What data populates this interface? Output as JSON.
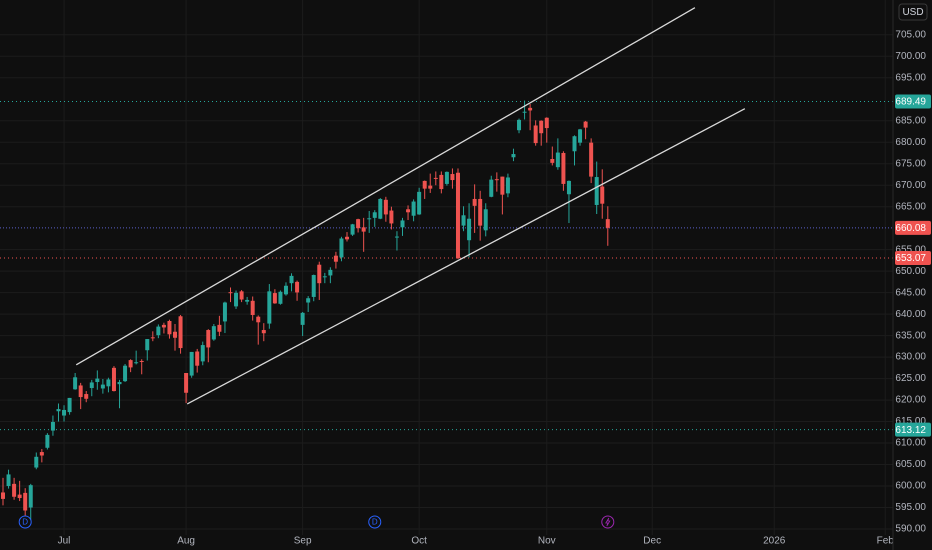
{
  "chart_data": {
    "type": "candlestick",
    "currency": "USD",
    "up_color": "#26a69a",
    "down_color": "#ef5350",
    "grid": true,
    "xlim": [
      -0.54,
      160.4
    ],
    "ylim": [
      588.6,
      713.1
    ],
    "xticks": [
      {
        "value": 11,
        "label": "Jul"
      },
      {
        "value": 33,
        "label": "Aug"
      },
      {
        "value": 54,
        "label": "Sep"
      },
      {
        "value": 75,
        "label": "Oct"
      },
      {
        "value": 98,
        "label": "Nov"
      },
      {
        "value": 117,
        "label": "Dec"
      },
      {
        "value": 139,
        "label": "2026"
      },
      {
        "value": 159,
        "label": "Feb"
      }
    ],
    "yticks": [
      {
        "value": 590,
        "label": "590.00"
      },
      {
        "value": 595,
        "label": "595.00"
      },
      {
        "value": 600,
        "label": "600.00"
      },
      {
        "value": 605,
        "label": "605.00"
      },
      {
        "value": 610,
        "label": "610.00"
      },
      {
        "value": 615,
        "label": "615.00"
      },
      {
        "value": 620,
        "label": "620.00"
      },
      {
        "value": 625,
        "label": "625.00"
      },
      {
        "value": 630,
        "label": "630.00"
      },
      {
        "value": 635,
        "label": "635.00"
      },
      {
        "value": 640,
        "label": "640.00"
      },
      {
        "value": 645,
        "label": "645.00"
      },
      {
        "value": 650,
        "label": "650.00"
      },
      {
        "value": 655,
        "label": "655.00"
      },
      {
        "value": 665,
        "label": "665.00"
      },
      {
        "value": 670,
        "label": "670.00"
      },
      {
        "value": 675,
        "label": "675.00"
      },
      {
        "value": 680,
        "label": "680.00"
      },
      {
        "value": 685,
        "label": "685.00"
      },
      {
        "value": 695,
        "label": "695.00"
      },
      {
        "value": 700,
        "label": "700.00"
      },
      {
        "value": 705,
        "label": "705.00"
      }
    ],
    "open": [
      598.5,
      600.0,
      600.5,
      598.0,
      598.4,
      595.0,
      604.3,
      607.9,
      608.9,
      612.9,
      617.4,
      616.4,
      617.2,
      622.5,
      623.4,
      621.4,
      622.8,
      624.2,
      622.7,
      623.2,
      627.5,
      623.7,
      624.4,
      629.3,
      628.8,
      629.1,
      631.6,
      634.6,
      635.1,
      637.5,
      638.4,
      635.9,
      639.5,
      626.3,
      625.7,
      631.3,
      629.0,
      636.3,
      634.1,
      637.5,
      638.3,
      645.1,
      641.8,
      645.3,
      642.9,
      643.1,
      639.4,
      636.3,
      637.8,
      644.9,
      642.4,
      644.6,
      647.2,
      647.5,
      637.5,
      642.7,
      644.0,
      651.5,
      648.6,
      649.0,
      653.6,
      653.2,
      658.0,
      658.5,
      662.1,
      660.2,
      662.2,
      662.4,
      662.2,
      666.6,
      664.1,
      657.9,
      660.2,
      664.4,
      662.9,
      663.2,
      671.0,
      669.9,
      671.7,
      672.4,
      670.3,
      672.6,
      672.9,
      660.6,
      657.2,
      666.8,
      666.8,
      659.5,
      667.3,
      671.4,
      672.0,
      668.1,
      676.5,
      682.8,
      687.0,
      688.0,
      683.9,
      685.0,
      685.7,
      676.1,
      674.2,
      677.5,
      667.9,
      677.9,
      679.9,
      684.8,
      679.9,
      665.4,
      669.7,
      662.1
    ],
    "high": [
      601.9,
      603.8,
      601.9,
      601.2,
      599.5,
      600.5,
      607.8,
      608.6,
      612.3,
      616.4,
      619.2,
      618.8,
      620.5,
      626.3,
      624.0,
      622.1,
      624.7,
      626.9,
      624.9,
      625.2,
      627.9,
      624.7,
      628.4,
      629.5,
      631.5,
      629.5,
      634.2,
      636.0,
      637.6,
      638.0,
      638.7,
      637.7,
      639.8,
      626.3,
      631.2,
      631.9,
      633.6,
      636.5,
      637.7,
      639.6,
      642.9,
      646.2,
      645.5,
      645.6,
      644.0,
      644.1,
      639.7,
      637.9,
      647.0,
      645.8,
      645.5,
      647.4,
      649.5,
      647.8,
      640.5,
      644.2,
      649.2,
      652.2,
      649.6,
      650.9,
      654.5,
      658.0,
      659.1,
      661.0,
      662.2,
      662.4,
      664.0,
      664.2,
      667.0,
      667.3,
      665.0,
      659.3,
      662.4,
      665.3,
      666.7,
      669.4,
      671.1,
      672.7,
      673.2,
      673.2,
      673.2,
      673.9,
      673.9,
      665.1,
      665.8,
      670.2,
      668.7,
      665.8,
      672.2,
      672.99,
      672.0,
      672.7,
      678.5,
      685.5,
      689.7,
      688.9,
      685.1,
      685.1,
      685.8,
      679.0,
      680.9,
      677.9,
      671.1,
      681.6,
      683.1,
      684.96,
      680.9,
      675.5,
      673.7,
      665.1
    ],
    "low": [
      595.5,
      599.4,
      596.8,
      596.5,
      592.9,
      591.9,
      603.9,
      605.5,
      608.5,
      611.7,
      615.0,
      615.0,
      616.6,
      622.4,
      617.9,
      619.5,
      620.9,
      622.4,
      621.5,
      621.8,
      622.0,
      618.1,
      624.2,
      626.5,
      628.3,
      626.0,
      629.2,
      633.7,
      634.4,
      635.5,
      634.3,
      631.5,
      630.8,
      619.3,
      625.2,
      626.4,
      628.1,
      628.8,
      633.8,
      634.9,
      635.6,
      642.8,
      641.2,
      642.8,
      642.2,
      638.5,
      632.9,
      633.7,
      636.6,
      642.4,
      642.2,
      644.3,
      645.3,
      643.1,
      634.9,
      640.5,
      643.0,
      643.3,
      647.2,
      647.2,
      650.6,
      652.3,
      656.9,
      658.2,
      659.0,
      654.5,
      658.9,
      660.3,
      662.1,
      661.5,
      659.7,
      654.8,
      658.2,
      661.9,
      661.6,
      663.1,
      666.8,
      668.2,
      670.0,
      668.1,
      669.9,
      669.2,
      652.8,
      659.3,
      653.2,
      658.9,
      657.1,
      658.1,
      667.2,
      668.5,
      663.2,
      667.2,
      675.6,
      682.1,
      685.3,
      682.8,
      679.2,
      679.2,
      679.9,
      674.6,
      673.6,
      668.7,
      661.2,
      674.6,
      679.2,
      680.7,
      670.5,
      663.3,
      662.2,
      655.9
    ],
    "close": [
      597.0,
      602.7,
      597.5,
      597.2,
      594.3,
      600.2,
      606.8,
      607.1,
      611.9,
      614.9,
      617.9,
      617.7,
      620.5,
      625.3,
      620.7,
      620.3,
      624.1,
      625.0,
      623.6,
      624.8,
      622.1,
      624.2,
      628.0,
      627.6,
      628.8,
      628.9,
      634.2,
      634.4,
      637.1,
      636.9,
      635.3,
      634.5,
      632.1,
      621.7,
      631.2,
      628.0,
      632.8,
      632.25,
      637.2,
      635.9,
      642.7,
      644.9,
      644.95,
      643.4,
      643.3,
      639.8,
      638.1,
      635.55,
      645.3,
      642.5,
      645.2,
      646.6,
      648.9,
      645.05,
      640.3,
      643.7,
      649.1,
      647.2,
      648.8,
      650.3,
      652.2,
      657.6,
      657.4,
      660.9,
      660.0,
      659.2,
      662.3,
      663.7,
      666.8,
      663.2,
      661.1,
      658.05,
      661.8,
      663.7,
      666.2,
      668.45,
      669.2,
      669.2,
      671.6,
      669.1,
      673.1,
      671.2,
      653.0,
      663.0,
      662.2,
      665.2,
      660.6,
      664.4,
      671.3,
      671.3,
      667.8,
      671.8,
      677.25,
      685.2,
      687.1,
      687.4,
      679.8,
      682.1,
      683.3,
      675.2,
      677.6,
      670.3,
      671.0,
      681.4,
      683.0,
      683.4,
      672.0,
      671.9,
      665.7,
      660.08
    ],
    "hlines": [
      {
        "value": 689.49,
        "color": "#26a69a"
      },
      {
        "value": 653.07,
        "color": "#ef5350"
      },
      {
        "value": 613.12,
        "color": "#26a69a"
      }
    ],
    "last_price": 660.08,
    "last_price_color": "#ef5350",
    "last_line_color": "#5b5fc7",
    "trendlines": [
      {
        "color": "#d9d9d9",
        "x": [
          13.2,
          124.7
        ],
        "y": [
          628.2,
          711.3
        ]
      },
      {
        "color": "#d9d9d9",
        "x": [
          33.2,
          133.7
        ],
        "y": [
          619.1,
          687.8
        ]
      }
    ],
    "markers": [
      {
        "x": 4,
        "label": "D",
        "color": "#2962ff"
      },
      {
        "x": 67,
        "label": "D",
        "color": "#2962ff"
      },
      {
        "x": 109,
        "icon": "lightning",
        "color": "#9c27b0"
      }
    ]
  }
}
